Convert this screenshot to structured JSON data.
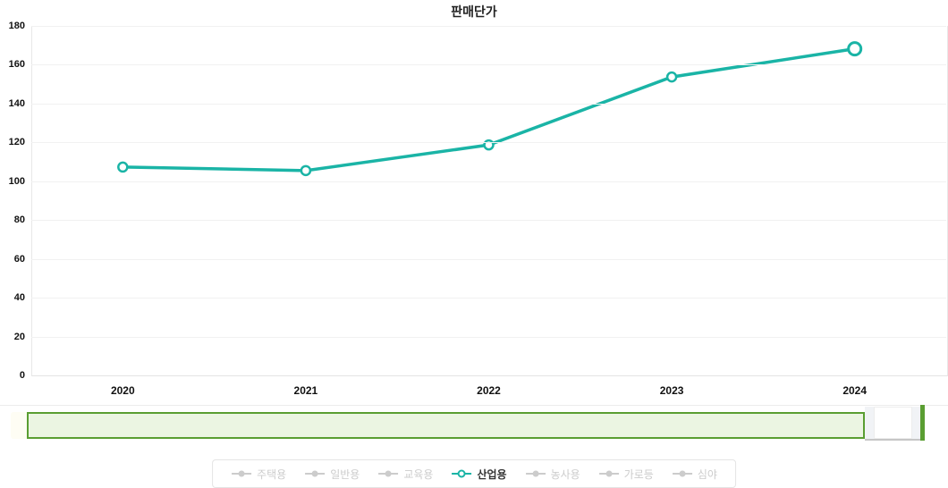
{
  "chart_data": {
    "type": "line",
    "title": "판매단가",
    "categories": [
      "2020",
      "2021",
      "2022",
      "2023",
      "2024"
    ],
    "series": [
      {
        "name": "산업용",
        "color": "#1ab4a6",
        "values": [
          107.3,
          105.5,
          118.7,
          153.7,
          168.2
        ],
        "marker": "open-circle",
        "highlighted_index": 4
      }
    ],
    "ylim": [
      0,
      180
    ],
    "y_ticks": [
      180,
      160,
      140,
      120,
      100,
      80,
      60,
      40,
      20,
      0
    ],
    "xlabel": "",
    "ylabel": "",
    "grid": "horizontal",
    "legend_position": "bottom"
  },
  "legend": {
    "active_color": "#1ab4a6",
    "inactive_color": "#cccccc",
    "items": [
      {
        "label": "주택용",
        "active": false
      },
      {
        "label": "일반용",
        "active": false
      },
      {
        "label": "교육용",
        "active": false
      },
      {
        "label": "산업용",
        "active": true
      },
      {
        "label": "농사용",
        "active": false
      },
      {
        "label": "가로등",
        "active": false
      },
      {
        "label": "심야",
        "active": false
      }
    ]
  },
  "navigator": {
    "range_fill": "#ebf5e2",
    "range_border": "#5a9e32",
    "handle_color": "#5a9e32"
  }
}
